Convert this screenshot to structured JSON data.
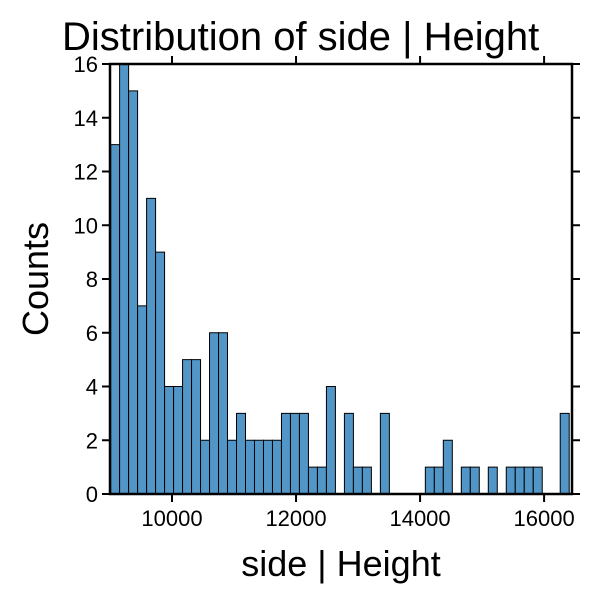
{
  "chart_data": {
    "type": "histogram",
    "title": "Distribution of side | Height",
    "x_label": "side | Height",
    "y_label": "Counts",
    "bins": [
      9010,
      9155,
      9300,
      9445,
      9590,
      9735,
      9880,
      10025,
      10170,
      10315,
      10460,
      10605,
      10750,
      10895,
      11040,
      11185,
      11330,
      11475,
      11620,
      11765,
      11910,
      12055,
      12200,
      12345,
      12490,
      12635,
      12780,
      12925,
      13070,
      13215,
      13360,
      13505,
      13650,
      13795,
      13940,
      14085,
      14230,
      14375,
      14520,
      14665,
      14810,
      14955,
      15100,
      15245,
      15390,
      15535,
      15680,
      15825,
      15970,
      16115,
      16260,
      16405
    ],
    "values": [
      13,
      16,
      15,
      7,
      11,
      9,
      4,
      4,
      5,
      5,
      2,
      6,
      6,
      2,
      3,
      2,
      2,
      2,
      2,
      3,
      3,
      3,
      1,
      1,
      4,
      0,
      3,
      1,
      1,
      0,
      3,
      0,
      0,
      0,
      0,
      1,
      1,
      2,
      0,
      1,
      1,
      0,
      1,
      0,
      1,
      1,
      1,
      1,
      0,
      0,
      3
    ],
    "color": "#5196c6",
    "xlim": [
      9000,
      16450
    ],
    "ylim": [
      0,
      16
    ],
    "xticks": [
      10000,
      12000,
      14000,
      16000
    ],
    "yticks": [
      0,
      2,
      4,
      6,
      8,
      10,
      12,
      14,
      16
    ]
  }
}
